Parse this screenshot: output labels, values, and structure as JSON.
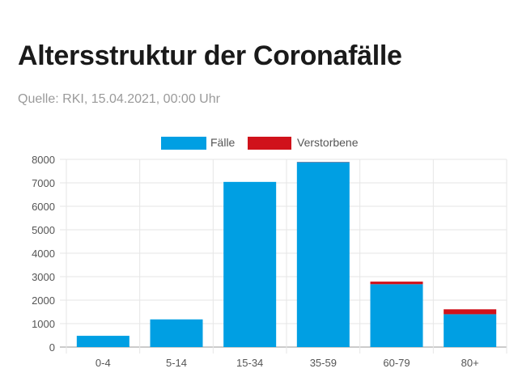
{
  "header": {
    "title": "Altersstruktur der Coronafälle",
    "source": "Quelle: RKI, 15.04.2021, 00:00 Uhr"
  },
  "chart_data": {
    "type": "bar",
    "stacked": true,
    "categories": [
      "0-4",
      "5-14",
      "15-34",
      "35-59",
      "60-79",
      "80+"
    ],
    "series": [
      {
        "name": "Fälle",
        "color": "#009fe3",
        "values": [
          480,
          1180,
          7040,
          7880,
          2680,
          1400
        ]
      },
      {
        "name": "Verstorbene",
        "color": "#d0121b",
        "values": [
          0,
          0,
          0,
          10,
          110,
          210
        ]
      }
    ],
    "ylim": [
      0,
      8000
    ],
    "yticks": [
      0,
      1000,
      2000,
      3000,
      4000,
      5000,
      6000,
      7000,
      8000
    ],
    "grid": true,
    "legend_position": "top-center"
  }
}
